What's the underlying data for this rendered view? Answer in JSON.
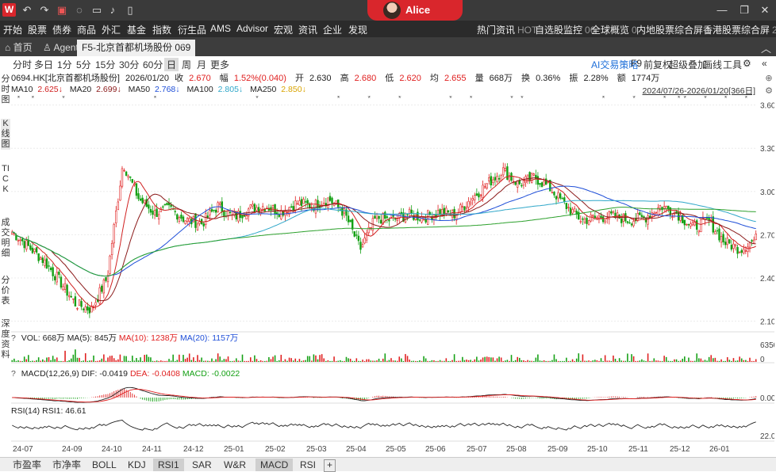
{
  "titlebar": {
    "logo": "W",
    "user": "Alice",
    "icons": [
      "undo-icon",
      "redo-icon",
      "pdf-icon",
      "chat-icon",
      "monitor-icon",
      "bell-icon",
      "note-icon"
    ]
  },
  "menu": {
    "left": [
      "开始",
      "股票",
      "债券",
      "商品",
      "外汇",
      "基金",
      "指数",
      "衍生品",
      "AMS",
      "Advisor",
      "宏观",
      "资讯",
      "企业",
      "发现"
    ],
    "right": [
      {
        "label": "热门资讯",
        "badge": "HOT"
      },
      {
        "label": "自选股监控",
        "badge": "06"
      },
      {
        "label": "全球概览",
        "badge": "0"
      },
      {
        "label": "内地股票综合屏",
        "badge": "1"
      },
      {
        "label": "香港股票综合屏",
        "badge": "2"
      }
    ]
  },
  "tabs": {
    "home": "首页",
    "agent": "Agent",
    "active": "F5-北京首都机场股份 069"
  },
  "toolbar": {
    "periods": [
      "分时",
      "多日",
      "1分",
      "5分",
      "15分",
      "30分",
      "60分",
      "日",
      "周",
      "月",
      "更多"
    ],
    "active_period": "日",
    "right": [
      "AI交易策略",
      "F9",
      "前复权",
      "超级叠加",
      "画线",
      "工具"
    ]
  },
  "sidebar": [
    "分时图",
    "K线图",
    "TICK",
    "成交明细",
    "分价表",
    "深度资料"
  ],
  "quote": {
    "code_name": "0694.HK[北京首都机场股份]",
    "date": "2026/01/20",
    "close_label": "收",
    "close": "2.670",
    "change_label": "幅",
    "change": "1.52%(0.040)",
    "open_label": "开",
    "open": "2.630",
    "high_label": "高",
    "high": "2.680",
    "low_label": "低",
    "low": "2.620",
    "avg_label": "均",
    "avg": "2.655",
    "volume_label": "量",
    "volume": "668万",
    "turnover_label": "换",
    "turnover": "0.36%",
    "amplitude_label": "振",
    "amplitude": "2.28%",
    "amount_label": "额",
    "amount": "1774万"
  },
  "ma": {
    "ma10_label": "MA10",
    "ma10": "2.625↓",
    "ma20_label": "MA20",
    "ma20": "2.699↓",
    "ma50_label": "MA50",
    "ma50": "2.768↓",
    "ma100_label": "MA100",
    "ma100": "2.805↓",
    "ma250_label": "MA250",
    "ma250": "2.850↓",
    "range": "2024/07/26-2026/01/20[366日]"
  },
  "colors": {
    "up": "#e02020",
    "down": "#14a014",
    "ma10": "#d02020",
    "ma20": "#8b1a1a",
    "ma50": "#1f4fd8",
    "ma100": "#2fa7c9",
    "ma250": "#2ca02c"
  },
  "volume_panel": {
    "label": "VOL: 668万",
    "ma5": "MA(5): 845万",
    "ma10": "MA(10): 1238万",
    "ma20": "MA(20): 1157万",
    "axis": [
      "6350万",
      "0"
    ]
  },
  "macd_panel": {
    "label": "MACD(12,26,9)",
    "dif": "DIF: -0.0419",
    "dea": "DEA: -0.0408",
    "macd": "MACD: -0.0022",
    "axis": [
      "0.000"
    ]
  },
  "rsi_panel": {
    "label": "RSI(14)",
    "rsi1": "RSI1: 46.61",
    "axis": [
      "22.00"
    ]
  },
  "chart_data": {
    "type": "candlestick",
    "price_axis": [
      "3.60",
      "3.30",
      "3.00",
      "2.70",
      "2.40",
      "2.10"
    ],
    "ylim": [
      2.07,
      3.62
    ],
    "x_labels": [
      "24-07",
      "24-09",
      "24-10",
      "24-11",
      "24-12",
      "25-01",
      "25-02",
      "25-03",
      "25-04",
      "25-05",
      "25-06",
      "25-07",
      "25-08",
      "25-09",
      "25-10",
      "25-11",
      "25-12",
      "26-01"
    ],
    "close_path": [
      2.72,
      2.62,
      2.52,
      2.38,
      2.22,
      2.18,
      2.4,
      3.2,
      2.95,
      2.85,
      2.88,
      2.8,
      2.78,
      2.9,
      2.82,
      2.88,
      2.9,
      2.86,
      2.92,
      2.9,
      2.95,
      2.85,
      2.6,
      2.82,
      2.8,
      2.84,
      2.82,
      2.86,
      2.84,
      2.95,
      3.05,
      3.15,
      3.05,
      3.1,
      3.02,
      2.9,
      2.8,
      2.82,
      2.83,
      2.8,
      2.82,
      2.9,
      2.85,
      2.75,
      2.8,
      2.65,
      2.6,
      2.67
    ]
  },
  "bottom_tabs": [
    "市盈率",
    "市净率",
    "BOLL",
    "KDJ",
    "RSI1",
    "SAR",
    "W&R",
    "MACD",
    "RSI",
    "+"
  ],
  "bottom_active": [
    "RSI1",
    "MACD"
  ]
}
